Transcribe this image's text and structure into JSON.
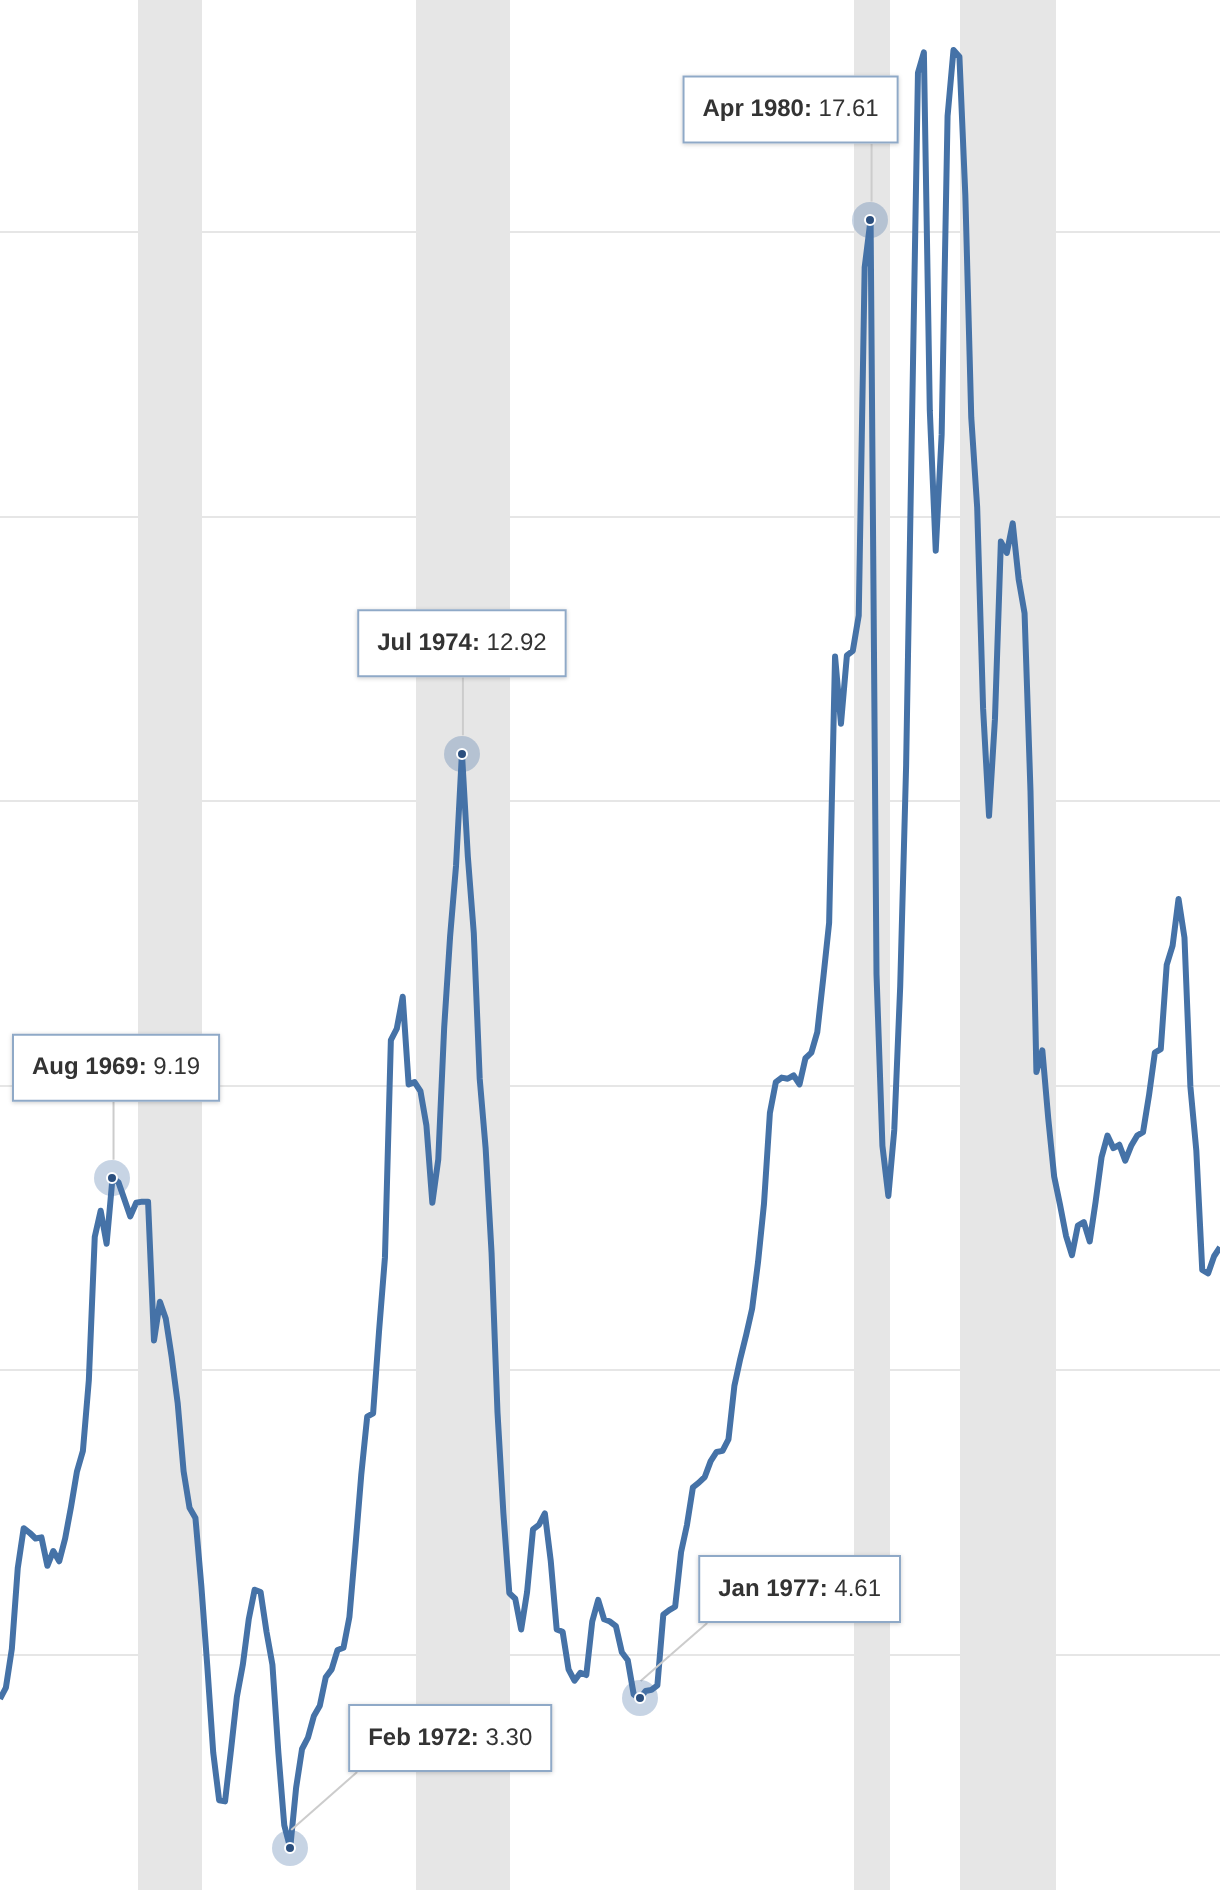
{
  "chart_data": {
    "type": "line",
    "tick_labels": false,
    "grid": "y",
    "marker": "none",
    "line_style": "solid",
    "categories": [
      null,
      null,
      null,
      null,
      null,
      null,
      null,
      null,
      null,
      null,
      null,
      null,
      null,
      null,
      null,
      null,
      null,
      null,
      null,
      null,
      null,
      null,
      null,
      null,
      null,
      null,
      null,
      null,
      null,
      null,
      null,
      null,
      null,
      null,
      null,
      null,
      null,
      null,
      null,
      null,
      null,
      null,
      null,
      null,
      null,
      null,
      null,
      null,
      null,
      null,
      null,
      null,
      null,
      null,
      null,
      null,
      null,
      null,
      null,
      null,
      null,
      null,
      null,
      null,
      null,
      null,
      null,
      null,
      null,
      null,
      null,
      null,
      null,
      null,
      null,
      null,
      null,
      null,
      null,
      null,
      null,
      null,
      null,
      null,
      null,
      null,
      null,
      null,
      null,
      null,
      null,
      null,
      null,
      null,
      null,
      null,
      null,
      null,
      null,
      null,
      null,
      null,
      null,
      null,
      null,
      null,
      null,
      null,
      null,
      null,
      null,
      null,
      null,
      null,
      null,
      null,
      null,
      null,
      null,
      null,
      null,
      null,
      null,
      null,
      null,
      null,
      null,
      null,
      null,
      null,
      null,
      null,
      null,
      null,
      null,
      null,
      null,
      null,
      null,
      null,
      null,
      null,
      null,
      null,
      null,
      null,
      null,
      null,
      null,
      null,
      null,
      null,
      null,
      null,
      null,
      null,
      null,
      null,
      null,
      null,
      null,
      null,
      null,
      null,
      null,
      null,
      null,
      null,
      null,
      null,
      null,
      null,
      null,
      null,
      null,
      null,
      null,
      null,
      null,
      null,
      null,
      null,
      null,
      null,
      null,
      null,
      null,
      null,
      null,
      null,
      null,
      null,
      null,
      null,
      null,
      null,
      null,
      null,
      null,
      null,
      null,
      null,
      null,
      null,
      null,
      null,
      null
    ],
    "yticks": [
      {
        "value": 5,
        "label": null
      },
      {
        "value": 7.5,
        "label": null
      },
      {
        "value": 10,
        "label": null
      },
      {
        "value": 12.5,
        "label": null
      },
      {
        "value": 15,
        "label": null
      },
      {
        "value": 17.5,
        "label": null
      }
    ],
    "series": [
      {
        "color": "#4572a7",
        "values": [
          4.61,
          4.71,
          5.05,
          5.76,
          6.11,
          6.07,
          6.02,
          6.03,
          5.78,
          5.91,
          5.82,
          6.02,
          6.3,
          6.61,
          6.79,
          7.41,
          8.67,
          8.9,
          8.61,
          9.19,
          9.15,
          9.0,
          8.85,
          8.97,
          8.98,
          8.98,
          7.76,
          8.1,
          7.95,
          7.61,
          7.21,
          6.61,
          6.29,
          6.2,
          5.6,
          4.9,
          4.14,
          3.72,
          3.71,
          4.16,
          4.63,
          4.91,
          5.31,
          5.57,
          5.55,
          5.2,
          4.91,
          4.14,
          3.5,
          3.3,
          3.83,
          4.17,
          4.27,
          4.46,
          4.55,
          4.8,
          4.87,
          5.04,
          5.06,
          5.33,
          5.94,
          6.58,
          7.09,
          7.12,
          7.84,
          8.49,
          10.4,
          10.5,
          10.78,
          10.01,
          10.03,
          9.95,
          9.65,
          8.97,
          9.35,
          10.51,
          11.31,
          11.93,
          12.92,
          12.01,
          11.34,
          10.06,
          9.45,
          8.53,
          7.13,
          6.24,
          5.54,
          5.49,
          5.22,
          5.55,
          6.1,
          6.14,
          6.24,
          5.82,
          5.22,
          5.2,
          4.87,
          4.77,
          4.84,
          4.82,
          5.29,
          5.48,
          5.31,
          5.29,
          5.25,
          5.02,
          4.95,
          4.65,
          4.61,
          4.68,
          4.69,
          4.73,
          5.35,
          5.39,
          5.42,
          5.9,
          6.14,
          6.47,
          6.51,
          6.56,
          6.7,
          6.78,
          6.79,
          6.89,
          7.36,
          7.6,
          7.81,
          8.04,
          8.45,
          8.96,
          9.76,
          10.03,
          10.07,
          10.06,
          10.09,
          10.01,
          10.24,
          10.29,
          10.47,
          10.94,
          11.43,
          13.77,
          13.18,
          13.78,
          13.82,
          14.13,
          17.19,
          17.61,
          10.98,
          9.47,
          9.03,
          9.61,
          10.87,
          12.81,
          15.85,
          18.9,
          19.08,
          15.93,
          14.7,
          15.72,
          18.52,
          19.1,
          19.04,
          17.82,
          15.87,
          15.08,
          13.31,
          12.37,
          13.22,
          14.78,
          14.68,
          14.94,
          14.45,
          14.15,
          12.59,
          10.12,
          10.31,
          9.71,
          9.2,
          8.95,
          8.68,
          8.51,
          8.77,
          8.8,
          8.63,
          8.98,
          9.37,
          9.56,
          9.45,
          9.48,
          9.34,
          9.47,
          9.56,
          9.59,
          9.91,
          10.29,
          10.32,
          11.06,
          11.23,
          11.64,
          11.3,
          9.99,
          9.43,
          8.38,
          8.35,
          8.5,
          8.58
        ],
        "value_labels": [
          null,
          null,
          null,
          null,
          null,
          null,
          null,
          null,
          null,
          null,
          null,
          null,
          null,
          null,
          null,
          null,
          null,
          null,
          null,
          "Aug 1969: 9.19",
          null,
          null,
          null,
          null,
          null,
          null,
          null,
          null,
          null,
          null,
          null,
          null,
          null,
          null,
          null,
          null,
          null,
          null,
          null,
          null,
          null,
          null,
          null,
          null,
          null,
          null,
          null,
          null,
          null,
          "Feb 1972: 3.30",
          null,
          null,
          null,
          null,
          null,
          null,
          null,
          null,
          null,
          null,
          null,
          null,
          null,
          null,
          null,
          null,
          null,
          null,
          null,
          null,
          null,
          null,
          null,
          null,
          null,
          null,
          null,
          null,
          "Jul 1974: 12.92",
          null,
          null,
          null,
          null,
          null,
          null,
          null,
          null,
          null,
          null,
          null,
          null,
          null,
          null,
          null,
          null,
          null,
          null,
          null,
          null,
          null,
          null,
          null,
          null,
          null,
          null,
          null,
          null,
          null,
          "Jan 1977: 4.61",
          null,
          null,
          null,
          null,
          null,
          null,
          null,
          null,
          null,
          null,
          null,
          null,
          null,
          null,
          null,
          null,
          null,
          null,
          null,
          null,
          null,
          null,
          null,
          null,
          null,
          null,
          null,
          null,
          null,
          null,
          null,
          null,
          null,
          null,
          null,
          null,
          null,
          null,
          "Apr 1980: 17.61",
          null,
          null,
          null,
          null,
          null,
          null,
          null,
          null,
          null,
          null,
          null,
          null,
          null,
          null,
          null,
          null,
          null,
          null,
          null,
          null,
          null,
          null,
          null,
          null,
          null,
          null,
          null,
          null,
          null,
          null,
          null,
          null,
          null,
          null,
          null,
          null,
          null,
          null,
          null,
          null,
          null,
          null,
          null,
          null,
          null,
          null,
          null,
          null,
          null,
          null,
          null,
          null,
          null,
          null,
          null,
          null,
          null,
          null,
          null
        ]
      }
    ]
  }
}
